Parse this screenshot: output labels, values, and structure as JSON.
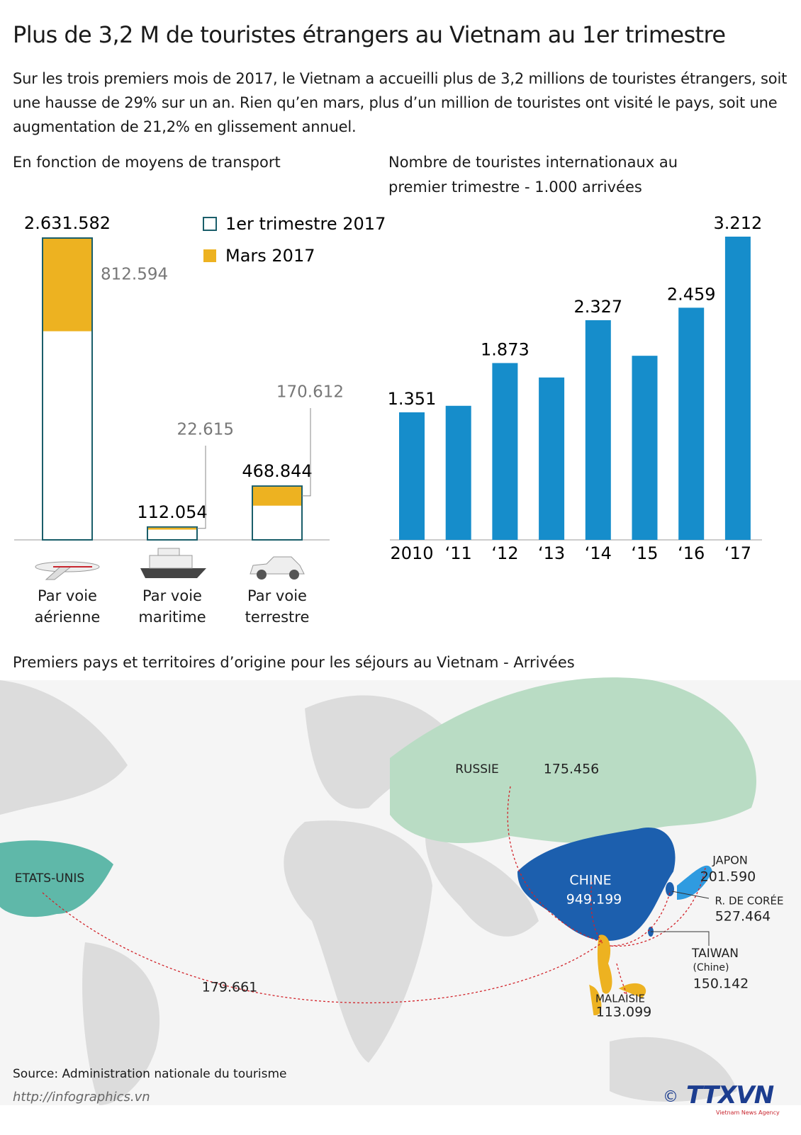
{
  "header": {
    "title": "Plus de 3,2 M de touristes étrangers au Vietnam au 1er trimestre",
    "intro": "Sur les trois premiers mois de 2017, le Vietnam a accueilli plus de 3,2 millions de touristes étrangers, soit une hausse de 29% sur un an. Rien qu’en mars, plus d’un million de touristes ont visité le pays, soit une augmentation de 21,2% en glissement annuel."
  },
  "chart_data": [
    {
      "type": "overlay-bar",
      "title": "En fonction de moyens de transport",
      "categories": [
        "Par voie aérienne",
        "Par voie maritime",
        "Par voie terrestre"
      ],
      "series": [
        {
          "name": "1er trimestre 2017",
          "color": "#ffffff",
          "stroke": "#1a5e6a",
          "values": [
            2631582,
            112054,
            468844
          ],
          "value_labels": [
            "2.631.582",
            "112.054",
            "468.844"
          ]
        },
        {
          "name": "Mars 2017",
          "color": "#edb221",
          "values": [
            812594,
            22615,
            170612
          ],
          "value_labels": [
            "812.594",
            "22.615",
            "170.612"
          ]
        }
      ]
    },
    {
      "type": "bar",
      "title": "Nombre de touristes internationaux au premier trimestre - 1.000 arrivées",
      "categories": [
        "2010",
        "‘11",
        "‘12",
        "‘13",
        "‘14",
        "‘15",
        "‘16",
        "‘17"
      ],
      "values": [
        1351,
        1420,
        1873,
        1720,
        2327,
        1950,
        2459,
        3212
      ],
      "value_labels": [
        "1.351",
        null,
        "1.873",
        null,
        "2.327",
        null,
        "2.459",
        "3.212"
      ],
      "color": "#168dcb"
    }
  ],
  "map": {
    "title": "Premiers pays et territoires d’origine pour les séjours au Vietnam - Arrivées",
    "countries": [
      {
        "name": "RUSSIE",
        "arrivals": "175.456"
      },
      {
        "name": "ETATS-UNIS",
        "arrivals": "179.661"
      },
      {
        "name": "CHINE",
        "arrivals": "949.199"
      },
      {
        "name": "JAPON",
        "arrivals": "201.590"
      },
      {
        "name": "R. DE CORÉE",
        "arrivals": "527.464"
      },
      {
        "name": "TAIWAN",
        "note": "(Chine)",
        "arrivals": "150.142"
      },
      {
        "name": "MALAISIE",
        "arrivals": "113.099"
      }
    ]
  },
  "footer": {
    "source": "Source: Administration nationale du tourisme",
    "url": "http://infographics.vn",
    "logo": "TTXVN",
    "agency": "Vietnam News Agency"
  }
}
